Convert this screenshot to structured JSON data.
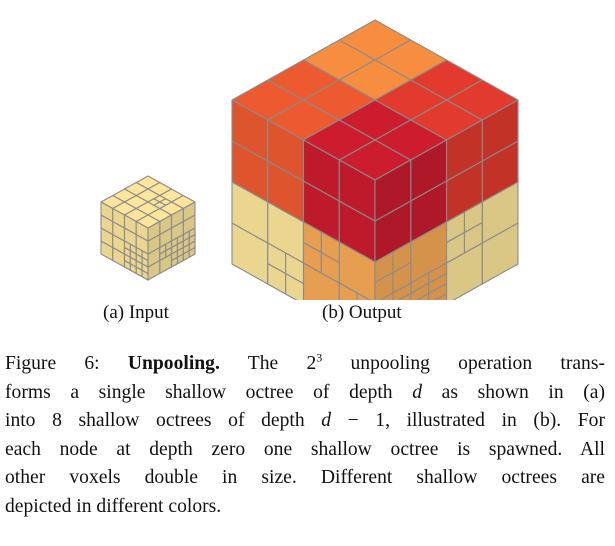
{
  "figure": {
    "subfigures": [
      {
        "label": "(a) Input"
      },
      {
        "label": "(b) Output"
      }
    ],
    "colors": {
      "input": "#fde69b",
      "yellow": "#fde69b",
      "light_orange": "#f8aa56",
      "orange": "#f68d3f",
      "red_orange": "#ee5a30",
      "red": "#e23a2d",
      "dark_red": "#cc1c2e",
      "grid_line": "#8b8b8b"
    }
  },
  "caption": {
    "prefix": "Figure 6:",
    "title": "Unpooling.",
    "line1_pre": "The 2",
    "line1_sup": "3",
    "line1_post": " unpooling operation trans-",
    "line2_pre": "forms a single shallow octree of depth ",
    "line2_var": "d",
    "line2_post": " as shown in (a)",
    "line3_pre": "into 8 shallow octrees of depth ",
    "line3_var": "d",
    "line3_post": " − 1, illustrated in (b). For",
    "line4": "each node at depth zero one shallow octree is spawned. All",
    "line5": "other voxels double in size. Different shallow octrees are",
    "line6": "depicted in different colors."
  }
}
